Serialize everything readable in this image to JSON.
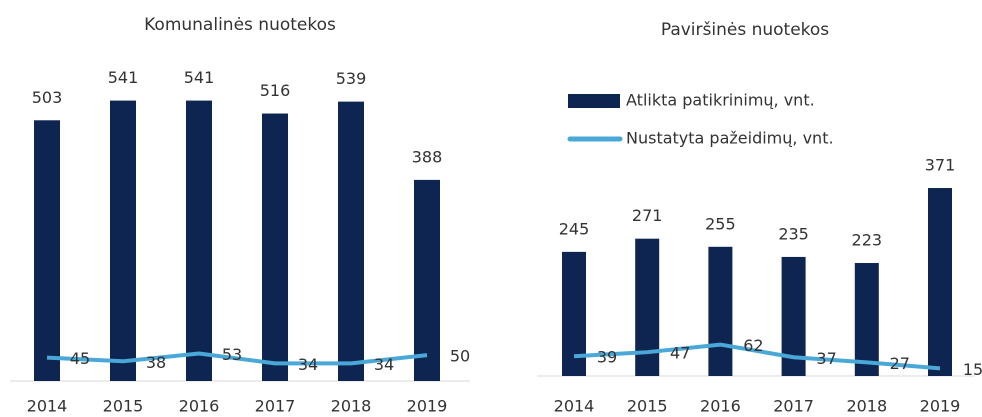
{
  "chart_data": [
    {
      "type": "bar",
      "title": "Komunalinės nuotekos",
      "categories": [
        "2014",
        "2015",
        "2016",
        "2017",
        "2018",
        "2019"
      ],
      "ylim": [
        0,
        600
      ],
      "series": [
        {
          "type": "bar",
          "color": "#0d2550",
          "values": [
            503,
            541,
            541,
            516,
            539,
            388
          ]
        },
        {
          "type": "line",
          "color": "#4aa8d8",
          "values": [
            45,
            38,
            53,
            34,
            34,
            50
          ]
        }
      ]
    },
    {
      "type": "bar",
      "title": "Paviršinės nuotekos",
      "categories": [
        "2014",
        "2015",
        "2016",
        "2017",
        "2018",
        "2019"
      ],
      "ylim": [
        0,
        600
      ],
      "legend": "top",
      "series": [
        {
          "type": "bar",
          "name": "Atlikta patikrinimų, vnt.",
          "color": "#0d2550",
          "values": [
            245,
            271,
            255,
            235,
            223,
            371
          ]
        },
        {
          "type": "line",
          "name": "Nustatyta pažeidimų, vnt.",
          "color": "#4aa8d8",
          "values": [
            39,
            47,
            62,
            37,
            27,
            15
          ]
        }
      ]
    }
  ]
}
